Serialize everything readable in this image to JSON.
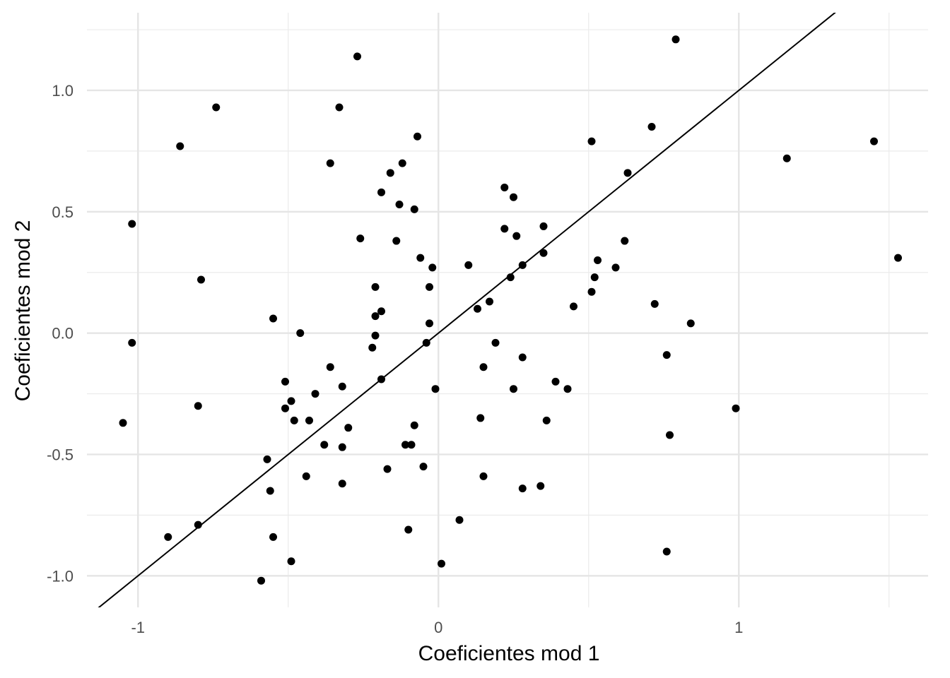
{
  "chart_data": {
    "type": "scatter",
    "x_label": "Coeficientes mod 1",
    "y_label": "Coeficientes mod 2",
    "xlim": [
      -1.17,
      1.63
    ],
    "ylim": [
      -1.13,
      1.32
    ],
    "xticks": [
      -1,
      0,
      1
    ],
    "yticks": [
      {
        "value": -1,
        "label": "-1.0"
      },
      -0.5,
      {
        "value": 0,
        "label": "0.0"
      },
      0.5,
      {
        "value": 1,
        "label": "1.0"
      }
    ],
    "x_minor_grid": [
      -0.5,
      0.5,
      1.5
    ],
    "y_minor_grid": [
      -0.75,
      -0.25,
      0.25,
      0.75,
      1.25
    ],
    "grid": true,
    "color": "#000000",
    "reference_line": {
      "slope": 1,
      "intercept": 0,
      "color": "#000000"
    },
    "x": [
      0.79,
      -0.27,
      -0.74,
      -0.33,
      -0.86,
      0.71,
      0.51,
      1.45,
      1.16,
      -0.07,
      -0.36,
      -0.12,
      -0.16,
      -0.19,
      -0.13,
      -0.08,
      0.22,
      0.25,
      0.63,
      -1.02,
      0.22,
      0.26,
      0.35,
      -0.26,
      -0.14,
      0.62,
      -0.06,
      1.53,
      0.35,
      0.53,
      0.1,
      0.28,
      -0.02,
      0.59,
      -0.79,
      0.24,
      0.52,
      -0.21,
      -0.03,
      0.51,
      0.72,
      0.45,
      0.17,
      0.13,
      -0.19,
      -0.21,
      -0.55,
      -0.03,
      0.84,
      -0.46,
      -0.21,
      -1.02,
      -0.04,
      0.19,
      -0.22,
      0.76,
      0.28,
      -0.36,
      0.15,
      -0.51,
      -0.19,
      0.39,
      -0.32,
      -0.01,
      0.25,
      0.43,
      -0.41,
      -0.49,
      -0.51,
      -0.8,
      0.99,
      0.14,
      0.36,
      -1.05,
      -0.48,
      -0.43,
      -0.3,
      -0.08,
      0.77,
      -0.38,
      -0.11,
      -0.09,
      -0.32,
      -0.57,
      -0.05,
      -0.17,
      -0.44,
      0.15,
      -0.32,
      0.28,
      0.34,
      -0.56,
      -0.8,
      0.07,
      -0.9,
      -0.55,
      -0.1,
      0.76,
      -0.49,
      0.01,
      -0.59
    ],
    "y": [
      1.21,
      1.14,
      0.93,
      0.93,
      0.77,
      0.85,
      0.79,
      0.79,
      0.72,
      0.81,
      0.7,
      0.7,
      0.66,
      0.58,
      0.53,
      0.51,
      0.6,
      0.56,
      0.66,
      0.45,
      0.43,
      0.4,
      0.44,
      0.39,
      0.38,
      0.38,
      0.31,
      0.31,
      0.33,
      0.3,
      0.28,
      0.28,
      0.27,
      0.27,
      0.22,
      0.23,
      0.23,
      0.19,
      0.19,
      0.17,
      0.12,
      0.11,
      0.13,
      0.1,
      0.09,
      0.07,
      0.06,
      0.04,
      0.04,
      0.0,
      -0.01,
      -0.04,
      -0.04,
      -0.04,
      -0.06,
      -0.09,
      -0.1,
      -0.14,
      -0.14,
      -0.2,
      -0.19,
      -0.2,
      -0.22,
      -0.23,
      -0.23,
      -0.23,
      -0.25,
      -0.28,
      -0.31,
      -0.3,
      -0.31,
      -0.35,
      -0.36,
      -0.37,
      -0.36,
      -0.36,
      -0.39,
      -0.38,
      -0.42,
      -0.46,
      -0.46,
      -0.46,
      -0.47,
      -0.52,
      -0.55,
      -0.56,
      -0.59,
      -0.59,
      -0.62,
      -0.64,
      -0.63,
      -0.65,
      -0.79,
      -0.77,
      -0.84,
      -0.84,
      -0.81,
      -0.9,
      -0.94,
      -0.95,
      -1.02
    ]
  }
}
